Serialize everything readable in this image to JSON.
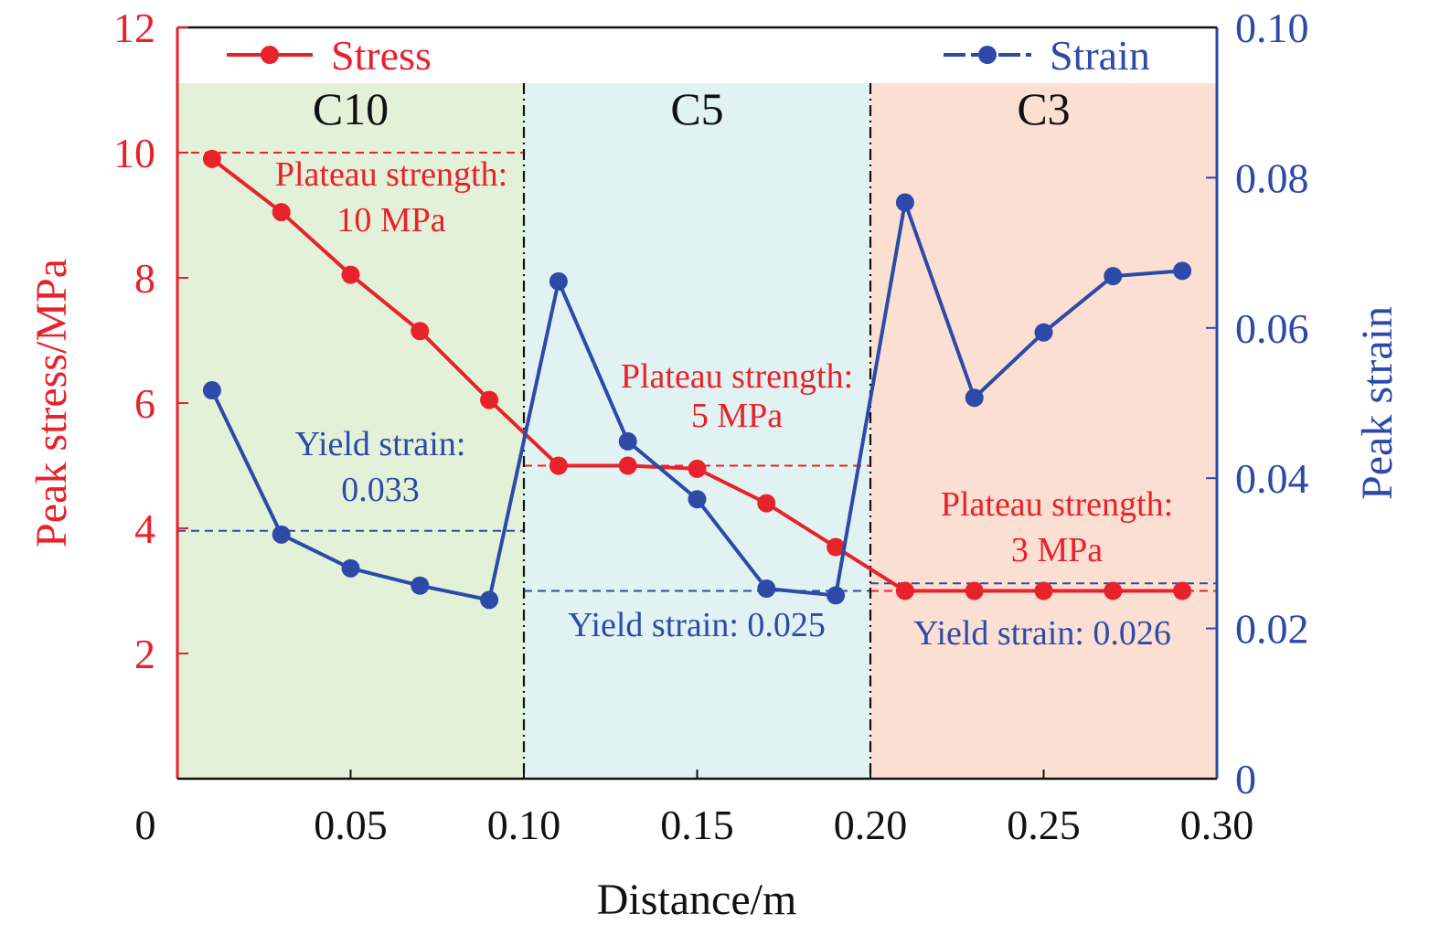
{
  "chart_data": {
    "type": "line",
    "xlabel": "Distance/m",
    "ylabel_left": "Peak stress/MPa",
    "ylabel_right": "Peak strain",
    "xlim": [
      0,
      0.3
    ],
    "ylim_left": [
      0,
      12
    ],
    "ylim_right": [
      0,
      0.1
    ],
    "x_ticks": [
      "0",
      "0.05",
      "0.10",
      "0.15",
      "0.20",
      "0.25",
      "0.30"
    ],
    "y_left_ticks": [
      "2",
      "4",
      "6",
      "8",
      "10",
      "12"
    ],
    "y_right_ticks": [
      "0",
      "0.02",
      "0.04",
      "0.06",
      "0.08",
      "0.10"
    ],
    "legend": [
      {
        "name": "Stress",
        "color": "#e8222a",
        "position": "top-left"
      },
      {
        "name": "Strain",
        "color": "#2e4aa8",
        "position": "top-right"
      }
    ],
    "regions": [
      {
        "label": "C10",
        "x0": 0.0,
        "x1": 0.1,
        "color": "#e2f1d8"
      },
      {
        "label": "C5",
        "x0": 0.1,
        "x1": 0.2,
        "color": "#e0f3f2"
      },
      {
        "label": "C3",
        "x0": 0.2,
        "x1": 0.3,
        "color": "#fbdfd2"
      }
    ],
    "series": [
      {
        "name": "Stress",
        "axis": "left",
        "color": "#e8222a",
        "x": [
          0.01,
          0.03,
          0.05,
          0.07,
          0.09,
          0.11,
          0.13,
          0.15,
          0.17,
          0.19,
          0.21,
          0.23,
          0.25,
          0.27,
          0.29
        ],
        "values": [
          9.9,
          9.05,
          8.05,
          7.15,
          6.05,
          5.0,
          5.0,
          4.95,
          4.4,
          3.7,
          3.0,
          3.0,
          3.0,
          3.0,
          3.0
        ]
      },
      {
        "name": "Strain",
        "axis": "right",
        "color": "#2e4aa8",
        "x": [
          0.01,
          0.03,
          0.05,
          0.07,
          0.09,
          0.11,
          0.13,
          0.15,
          0.17,
          0.19,
          0.21,
          0.23,
          0.25,
          0.27,
          0.29
        ],
        "values": [
          0.0517,
          0.0325,
          0.028,
          0.0257,
          0.0238,
          0.0662,
          0.0449,
          0.0372,
          0.0253,
          0.0244,
          0.0767,
          0.0507,
          0.0594,
          0.0669,
          0.0676
        ]
      }
    ],
    "reference_lines": [
      {
        "axis": "left",
        "value": 10,
        "x0": 0.0,
        "x1": 0.1,
        "color": "#e8222a"
      },
      {
        "axis": "left",
        "value": 5,
        "x0": 0.1,
        "x1": 0.2,
        "color": "#e8222a"
      },
      {
        "axis": "left",
        "value": 3,
        "x0": 0.2,
        "x1": 0.3,
        "color": "#e8222a"
      },
      {
        "axis": "right",
        "value": 0.033,
        "x0": 0.0,
        "x1": 0.1,
        "color": "#2e4aa8"
      },
      {
        "axis": "right",
        "value": 0.025,
        "x0": 0.1,
        "x1": 0.2,
        "color": "#2e4aa8"
      },
      {
        "axis": "right",
        "value": 0.026,
        "x0": 0.2,
        "x1": 0.3,
        "color": "#2e4aa8"
      }
    ],
    "annotations": [
      {
        "id": "c10-plateau-1",
        "text": "Plateau strength:",
        "color": "#e8222a"
      },
      {
        "id": "c10-plateau-2",
        "text": "10 MPa",
        "color": "#e8222a"
      },
      {
        "id": "c10-yield-1",
        "text": "Yield strain:",
        "color": "#2e4aa8"
      },
      {
        "id": "c10-yield-2",
        "text": "0.033",
        "color": "#2e4aa8"
      },
      {
        "id": "c5-plateau-1",
        "text": "Plateau strength:",
        "color": "#e8222a"
      },
      {
        "id": "c5-plateau-2",
        "text": "5 MPa",
        "color": "#e8222a"
      },
      {
        "id": "c5-yield",
        "text": "Yield strain: 0.025",
        "color": "#2e4aa8"
      },
      {
        "id": "c3-plateau-1",
        "text": "Plateau strength:",
        "color": "#e8222a"
      },
      {
        "id": "c3-plateau-2",
        "text": "3 MPa",
        "color": "#e8222a"
      },
      {
        "id": "c3-yield",
        "text": "Yield strain: 0.026",
        "color": "#2e4aa8"
      }
    ]
  }
}
